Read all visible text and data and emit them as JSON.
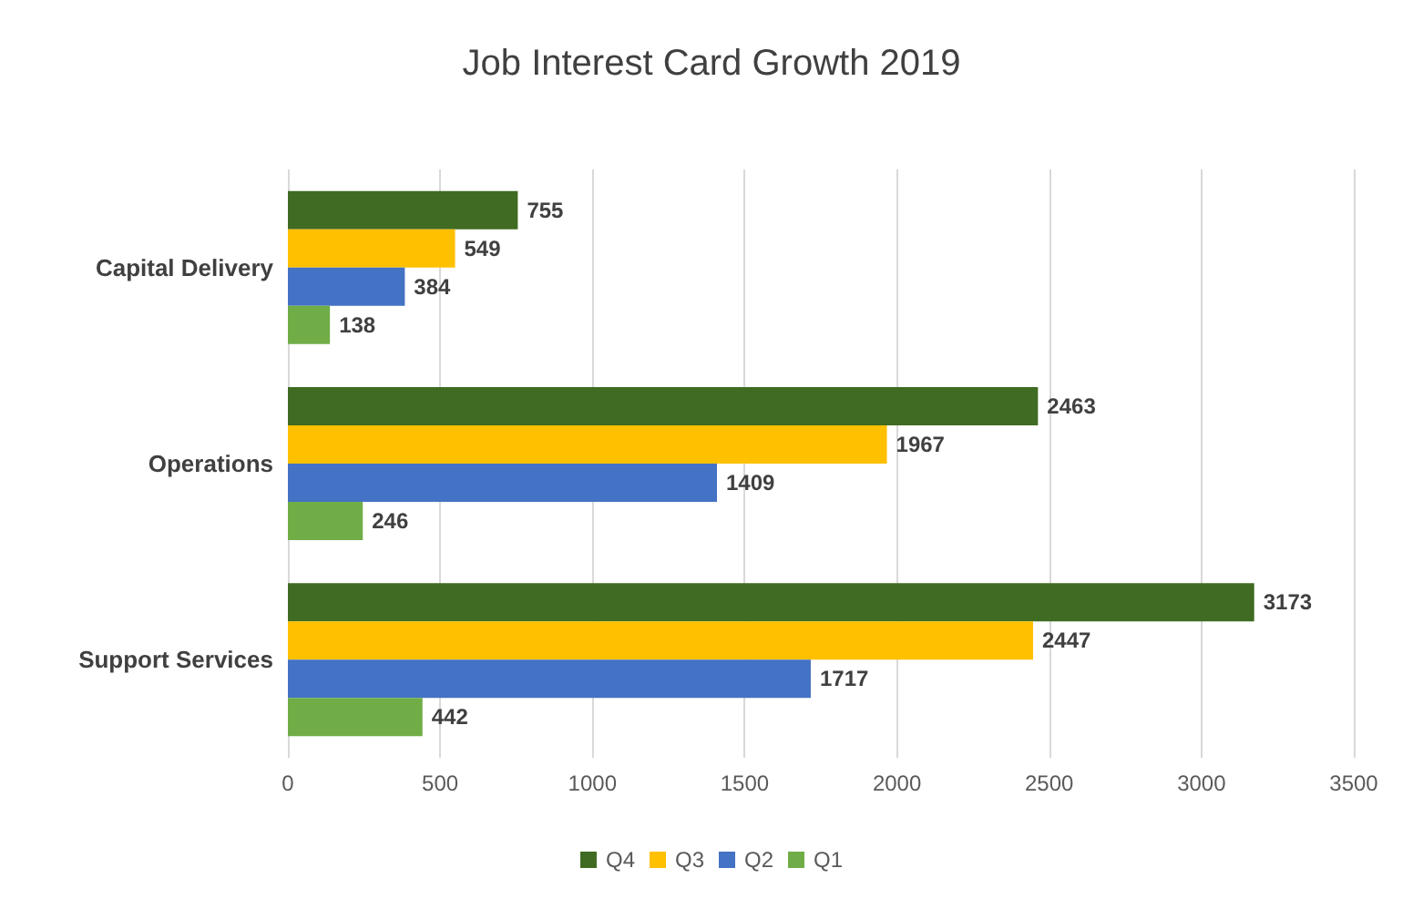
{
  "chart_data": {
    "type": "bar",
    "title": "Job Interest Card Growth 2019",
    "orientation": "horizontal",
    "categories": [
      "Capital Delivery",
      "Operations",
      "Support Services"
    ],
    "series": [
      {
        "name": "Q4",
        "color": "#3f6b22",
        "values": [
          755,
          2463,
          3173
        ]
      },
      {
        "name": "Q3",
        "color": "#ffc000",
        "values": [
          549,
          1967,
          2447
        ]
      },
      {
        "name": "Q2",
        "color": "#4472c4",
        "values": [
          384,
          1409,
          1717
        ]
      },
      {
        "name": "Q1",
        "color": "#70ad47",
        "values": [
          138,
          246,
          442
        ]
      }
    ],
    "xlim": [
      0,
      3500
    ],
    "xticks": [
      0,
      500,
      1000,
      1500,
      2000,
      2500,
      3000,
      3500
    ],
    "grid": "x",
    "legend": "bottom",
    "data_labels": true
  }
}
